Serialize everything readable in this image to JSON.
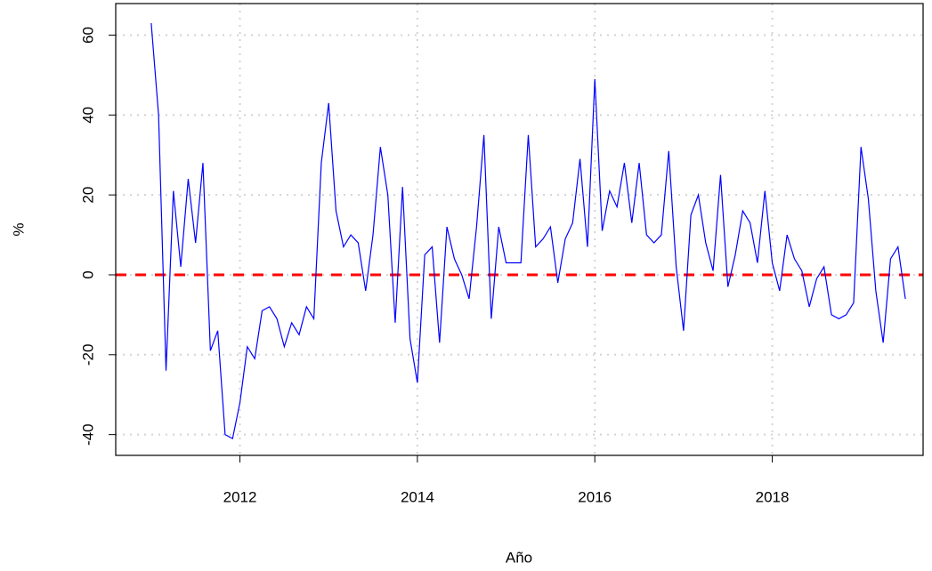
{
  "chart_data": {
    "type": "line",
    "x_label": "Año",
    "y_label": "%",
    "x": [
      2011,
      2011.083,
      2011.167,
      2011.25,
      2011.333,
      2011.417,
      2011.5,
      2011.583,
      2011.667,
      2011.75,
      2011.833,
      2011.917,
      2012,
      2012.083,
      2012.167,
      2012.25,
      2012.333,
      2012.417,
      2012.5,
      2012.583,
      2012.667,
      2012.75,
      2012.833,
      2012.917,
      2013,
      2013.083,
      2013.167,
      2013.25,
      2013.333,
      2013.417,
      2013.5,
      2013.583,
      2013.667,
      2013.75,
      2013.833,
      2013.917,
      2014,
      2014.083,
      2014.167,
      2014.25,
      2014.333,
      2014.417,
      2014.5,
      2014.583,
      2014.667,
      2014.75,
      2014.833,
      2014.917,
      2015,
      2015.083,
      2015.167,
      2015.25,
      2015.333,
      2015.417,
      2015.5,
      2015.583,
      2015.667,
      2015.75,
      2015.833,
      2015.917,
      2016,
      2016.083,
      2016.167,
      2016.25,
      2016.333,
      2016.417,
      2016.5,
      2016.583,
      2016.667,
      2016.75,
      2016.833,
      2016.917,
      2017,
      2017.083,
      2017.167,
      2017.25,
      2017.333,
      2017.417,
      2017.5,
      2017.583,
      2017.667,
      2017.75,
      2017.833,
      2017.917,
      2018,
      2018.083,
      2018.167,
      2018.25,
      2018.333,
      2018.417,
      2018.5,
      2018.583,
      2018.667,
      2018.75,
      2018.833,
      2018.917,
      2019,
      2019.083,
      2019.167,
      2019.25,
      2019.333,
      2019.417,
      2019.5
    ],
    "values": [
      63,
      40,
      -24,
      21,
      2,
      24,
      8,
      28,
      -19,
      -14,
      -40,
      -41,
      -32,
      -18,
      -21,
      -9,
      -8,
      -11,
      -18,
      -12,
      -15,
      -8,
      -11,
      28,
      43,
      16,
      7,
      10,
      8,
      -4,
      10,
      32,
      20,
      -12,
      22,
      -16,
      -27,
      5,
      7,
      -17,
      12,
      4,
      0,
      -6,
      12,
      35,
      -11,
      12,
      3,
      3,
      3,
      35,
      7,
      9,
      12,
      -2,
      9,
      13,
      29,
      7,
      49,
      11,
      21,
      17,
      28,
      13,
      28,
      10,
      8,
      10,
      31,
      2,
      -14,
      15,
      20,
      8,
      1,
      25,
      -3,
      5,
      16,
      13,
      3,
      21,
      3,
      -4,
      10,
      4,
      1,
      -8,
      -1,
      2,
      -10,
      -11,
      -10,
      -7,
      32,
      19,
      -4,
      -17,
      4,
      7,
      -6
    ],
    "color": "#0000ff",
    "hline": {
      "value": 0,
      "color": "#ff0000"
    },
    "xlim": [
      2010.6,
      2019.7
    ],
    "xticks": [
      2012,
      2014,
      2016,
      2018
    ],
    "ylim": [
      -45.2,
      67.9
    ],
    "yticks": [
      -40,
      -20,
      0,
      20,
      40,
      60
    ],
    "grid": true
  }
}
